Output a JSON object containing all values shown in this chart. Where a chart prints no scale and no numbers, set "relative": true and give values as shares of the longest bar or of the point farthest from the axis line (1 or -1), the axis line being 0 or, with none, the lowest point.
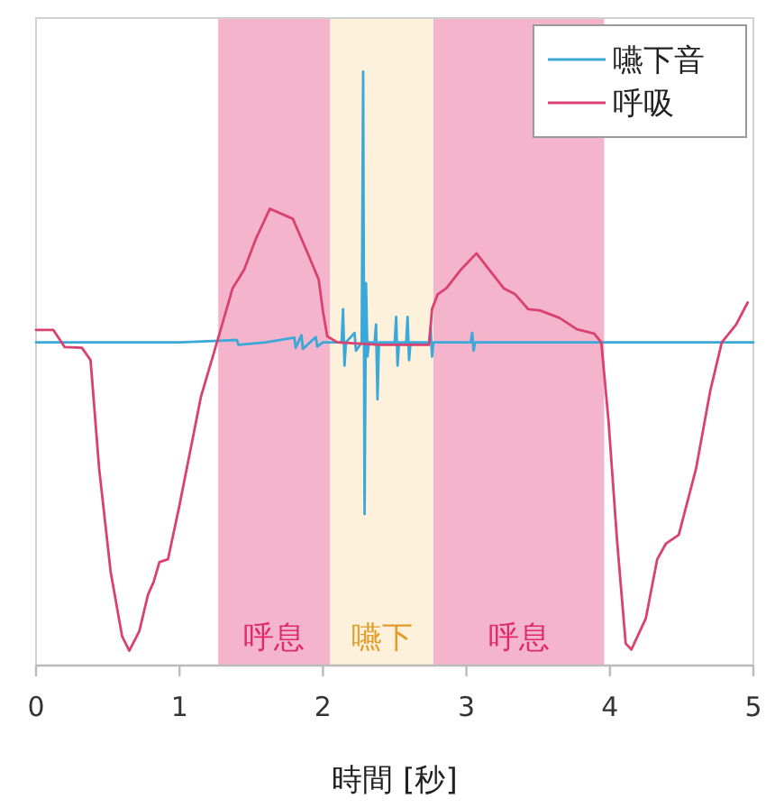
{
  "chart_data": {
    "type": "line",
    "xlabel": "時間 [秒]",
    "relative": true,
    "xlim": [
      0,
      5
    ],
    "xticks": [
      0,
      1,
      2,
      3,
      4,
      5
    ],
    "tick_labels": "x",
    "grid": false,
    "legend": "top right",
    "bands": [
      {
        "axis": "x",
        "from": 1.27,
        "to": 2.05,
        "label": "呼息",
        "color": "#f4b4cc"
      },
      {
        "axis": "x",
        "from": 2.05,
        "to": 2.77,
        "label": "嚥下",
        "color": "#fdf1dc"
      },
      {
        "axis": "x",
        "from": 2.77,
        "to": 3.96,
        "label": "呼息",
        "color": "#f4b4cc"
      }
    ],
    "series": [
      {
        "name": "嚥下音",
        "color": "#3aa8d8",
        "x": [
          0,
          0.5,
          1.0,
          1.4,
          1.41,
          1.6,
          1.8,
          1.81,
          1.85,
          1.86,
          1.95,
          1.96,
          2.0,
          2.13,
          2.14,
          2.15,
          2.16,
          2.22,
          2.23,
          2.27,
          2.28,
          2.29,
          2.3,
          2.31,
          2.32,
          2.36,
          2.37,
          2.38,
          2.39,
          2.5,
          2.51,
          2.52,
          2.53,
          2.58,
          2.59,
          2.6,
          2.61,
          2.74,
          2.75,
          2.76,
          2.77,
          3.03,
          3.04,
          3.05,
          3.06,
          3.5,
          4.0,
          4.5,
          5.0
        ],
        "values": [
          0.544,
          0.544,
          0.544,
          0.548,
          0.54,
          0.544,
          0.552,
          0.535,
          0.556,
          0.533,
          0.553,
          0.537,
          0.544,
          0.544,
          0.6,
          0.505,
          0.544,
          0.56,
          0.53,
          0.544,
          1.0,
          0.255,
          0.644,
          0.52,
          0.544,
          0.544,
          0.574,
          0.448,
          0.544,
          0.544,
          0.587,
          0.505,
          0.544,
          0.544,
          0.587,
          0.514,
          0.544,
          0.544,
          0.57,
          0.52,
          0.544,
          0.544,
          0.56,
          0.53,
          0.544,
          0.544,
          0.544,
          0.544,
          0.544
        ]
      },
      {
        "name": "呼吸",
        "color": "#d9416e",
        "x": [
          0,
          0.12,
          0.2,
          0.32,
          0.38,
          0.44,
          0.52,
          0.6,
          0.65,
          0.72,
          0.78,
          0.82,
          0.86,
          0.92,
          1.0,
          1.15,
          1.25,
          1.37,
          1.45,
          1.53,
          1.63,
          1.79,
          1.89,
          1.97,
          2.0,
          2.03,
          2.1,
          2.4,
          2.74,
          2.76,
          2.8,
          2.86,
          2.96,
          3.07,
          3.16,
          3.26,
          3.34,
          3.43,
          3.51,
          3.65,
          3.77,
          3.89,
          3.94,
          3.99,
          4.05,
          4.11,
          4.15,
          4.25,
          4.33,
          4.39,
          4.48,
          4.6,
          4.7,
          4.78,
          4.88,
          4.96
        ],
        "values": [
          0.565,
          0.565,
          0.536,
          0.535,
          0.514,
          0.331,
          0.158,
          0.049,
          0.025,
          0.058,
          0.119,
          0.141,
          0.174,
          0.179,
          0.27,
          0.453,
          0.535,
          0.635,
          0.666,
          0.717,
          0.769,
          0.752,
          0.696,
          0.65,
          0.596,
          0.554,
          0.544,
          0.54,
          0.54,
          0.6,
          0.625,
          0.635,
          0.666,
          0.694,
          0.666,
          0.635,
          0.625,
          0.6,
          0.598,
          0.585,
          0.566,
          0.559,
          0.544,
          0.413,
          0.21,
          0.037,
          0.027,
          0.079,
          0.179,
          0.205,
          0.22,
          0.331,
          0.463,
          0.544,
          0.574,
          0.611
        ]
      }
    ]
  }
}
